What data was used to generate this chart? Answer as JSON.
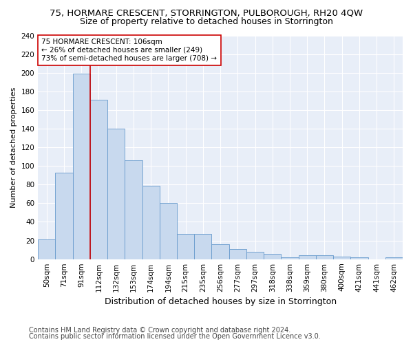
{
  "title": "75, HORMARE CRESCENT, STORRINGTON, PULBOROUGH, RH20 4QW",
  "subtitle": "Size of property relative to detached houses in Storrington",
  "xlabel": "Distribution of detached houses by size in Storrington",
  "ylabel": "Number of detached properties",
  "categories": [
    "50sqm",
    "71sqm",
    "91sqm",
    "112sqm",
    "132sqm",
    "153sqm",
    "174sqm",
    "194sqm",
    "215sqm",
    "235sqm",
    "256sqm",
    "277sqm",
    "297sqm",
    "318sqm",
    "338sqm",
    "359sqm",
    "380sqm",
    "400sqm",
    "421sqm",
    "441sqm",
    "462sqm"
  ],
  "values": [
    21,
    93,
    199,
    171,
    140,
    106,
    79,
    60,
    27,
    27,
    16,
    11,
    8,
    6,
    2,
    4,
    4,
    3,
    2,
    0,
    2
  ],
  "bar_color": "#c8d9ee",
  "bar_edge_color": "#6699cc",
  "vline_color": "#cc0000",
  "vline_x_idx": 2,
  "annotation_text": "75 HORMARE CRESCENT: 106sqm\n← 26% of detached houses are smaller (249)\n73% of semi-detached houses are larger (708) →",
  "annotation_box_color": "#ffffff",
  "annotation_box_edge": "#cc0000",
  "ylim": [
    0,
    240
  ],
  "yticks": [
    0,
    20,
    40,
    60,
    80,
    100,
    120,
    140,
    160,
    180,
    200,
    220,
    240
  ],
  "footer1": "Contains HM Land Registry data © Crown copyright and database right 2024.",
  "footer2": "Contains public sector information licensed under the Open Government Licence v3.0.",
  "bg_color": "#ffffff",
  "plot_bg_color": "#e8eef8",
  "grid_color": "#ffffff",
  "title_fontsize": 9.5,
  "subtitle_fontsize": 9,
  "xlabel_fontsize": 9,
  "ylabel_fontsize": 8,
  "tick_fontsize": 7.5,
  "annotation_fontsize": 7.5,
  "footer_fontsize": 7
}
